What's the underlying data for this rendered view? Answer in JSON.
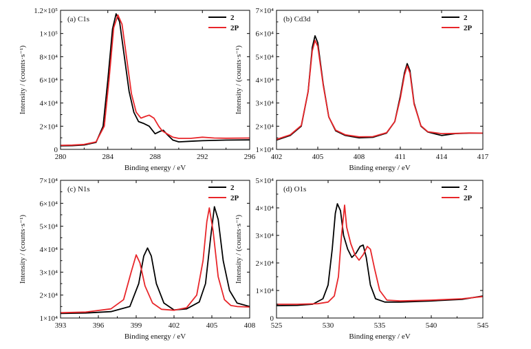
{
  "colors": {
    "series_2": "#000000",
    "series_2P": "#e8262a",
    "axis": "#000000"
  },
  "chart_data": [
    {
      "type": "line",
      "panel_label": "(a) C1s",
      "xlabel": "Binding energy / eV",
      "ylabel": "Intensity / (counts·s⁻¹)",
      "xlim": [
        280,
        296
      ],
      "ylim": [
        0,
        120000
      ],
      "x_ticks": [
        280,
        284,
        288,
        292,
        296
      ],
      "x_tick_labels": [
        "280",
        "284",
        "288",
        "292",
        "296"
      ],
      "y_ticks": [
        0,
        20000,
        40000,
        60000,
        80000,
        100000,
        120000
      ],
      "y_tick_labels": [
        "0",
        "2×10⁴",
        "4×10⁴",
        "6×10⁴",
        "8×10⁴",
        "1×10⁵",
        "1.2×10⁵"
      ],
      "legend": {
        "position": "top-right",
        "entries": [
          "2",
          "2P"
        ]
      },
      "series": [
        {
          "name": "2",
          "color": "#000000",
          "points": [
            [
              280,
              3000
            ],
            [
              281,
              3200
            ],
            [
              282,
              3800
            ],
            [
              283,
              6000
            ],
            [
              283.6,
              20000
            ],
            [
              284,
              60000
            ],
            [
              284.4,
              104000
            ],
            [
              284.7,
              117000
            ],
            [
              285,
              110000
            ],
            [
              285.4,
              80000
            ],
            [
              285.8,
              50000
            ],
            [
              286.2,
              32000
            ],
            [
              286.6,
              24000
            ],
            [
              287,
              22500
            ],
            [
              287.5,
              20000
            ],
            [
              288,
              13500
            ],
            [
              288.4,
              15500
            ],
            [
              288.7,
              16500
            ],
            [
              289,
              13000
            ],
            [
              289.5,
              8000
            ],
            [
              290,
              6500
            ],
            [
              291,
              7000
            ],
            [
              292,
              7500
            ],
            [
              294,
              8000
            ],
            [
              296,
              8200
            ]
          ]
        },
        {
          "name": "2P",
          "color": "#e8262a",
          "points": [
            [
              280,
              3500
            ],
            [
              281,
              3700
            ],
            [
              282,
              4300
            ],
            [
              283,
              6500
            ],
            [
              283.7,
              20000
            ],
            [
              284.1,
              60000
            ],
            [
              284.5,
              105000
            ],
            [
              284.85,
              116000
            ],
            [
              285.2,
              108000
            ],
            [
              285.6,
              78000
            ],
            [
              286,
              48000
            ],
            [
              286.4,
              32000
            ],
            [
              286.8,
              27000
            ],
            [
              287.2,
              28500
            ],
            [
              287.5,
              29500
            ],
            [
              287.9,
              27000
            ],
            [
              288.3,
              20000
            ],
            [
              288.6,
              16000
            ],
            [
              289,
              13500
            ],
            [
              289.5,
              10500
            ],
            [
              290,
              9500
            ],
            [
              291,
              9500
            ],
            [
              292,
              10500
            ],
            [
              293,
              9800
            ],
            [
              294,
              9600
            ],
            [
              296,
              9800
            ]
          ]
        }
      ]
    },
    {
      "type": "line",
      "panel_label": "(b) Cd3d",
      "xlabel": "Binding energy / eV",
      "ylabel": "Intensity / (counts·s⁻¹)",
      "xlim": [
        402,
        417
      ],
      "ylim": [
        10000,
        70000
      ],
      "x_ticks": [
        402,
        405,
        408,
        411,
        414,
        417
      ],
      "x_tick_labels": [
        "402",
        "405",
        "408",
        "411",
        "414",
        "417"
      ],
      "y_ticks": [
        10000,
        20000,
        30000,
        40000,
        50000,
        60000,
        70000
      ],
      "y_tick_labels": [
        "1×10⁴",
        "2×10⁴",
        "3×10⁴",
        "4×10⁴",
        "5×10⁴",
        "6×10⁴",
        "7×10⁴"
      ],
      "legend": {
        "position": "top-right",
        "entries": [
          "2",
          "2P"
        ]
      },
      "series": [
        {
          "name": "2",
          "color": "#000000",
          "points": [
            [
              402,
              14000
            ],
            [
              403,
              16000
            ],
            [
              403.8,
              20000
            ],
            [
              404.3,
              35000
            ],
            [
              404.6,
              54000
            ],
            [
              404.8,
              59000
            ],
            [
              405,
              56000
            ],
            [
              405.4,
              38000
            ],
            [
              405.8,
              24000
            ],
            [
              406.3,
              18000
            ],
            [
              407,
              16000
            ],
            [
              408,
              15000
            ],
            [
              409,
              15200
            ],
            [
              410,
              17000
            ],
            [
              410.6,
              22000
            ],
            [
              411,
              33000
            ],
            [
              411.3,
              43000
            ],
            [
              411.5,
              47000
            ],
            [
              411.7,
              44000
            ],
            [
              412,
              30000
            ],
            [
              412.5,
              20000
            ],
            [
              413,
              17500
            ],
            [
              414,
              16000
            ],
            [
              415,
              16800
            ],
            [
              416,
              17000
            ],
            [
              417,
              17000
            ]
          ]
        },
        {
          "name": "2P",
          "color": "#e8262a",
          "points": [
            [
              402,
              14300
            ],
            [
              403,
              16300
            ],
            [
              403.8,
              20300
            ],
            [
              404.3,
              35000
            ],
            [
              404.6,
              52500
            ],
            [
              404.8,
              57000
            ],
            [
              405,
              54500
            ],
            [
              405.4,
              37500
            ],
            [
              405.8,
              24000
            ],
            [
              406.3,
              18300
            ],
            [
              407,
              16300
            ],
            [
              408,
              15400
            ],
            [
              409,
              15500
            ],
            [
              410,
              17200
            ],
            [
              410.6,
              22000
            ],
            [
              411,
              32000
            ],
            [
              411.3,
              42000
            ],
            [
              411.5,
              46000
            ],
            [
              411.7,
              43000
            ],
            [
              412,
              29500
            ],
            [
              412.5,
              20200
            ],
            [
              413,
              17600
            ],
            [
              414,
              16800
            ],
            [
              415,
              16900
            ],
            [
              416,
              17100
            ],
            [
              417,
              17000
            ]
          ]
        }
      ]
    },
    {
      "type": "line",
      "panel_label": "(c) N1s",
      "xlabel": "Binding energy / eV",
      "ylabel": "Intensity / (counts·s⁻¹)",
      "xlim": [
        393,
        408
      ],
      "ylim": [
        10000,
        70000
      ],
      "x_ticks": [
        393,
        396,
        399,
        402,
        405,
        408
      ],
      "x_tick_labels": [
        "393",
        "396",
        "399",
        "402",
        "405",
        "408"
      ],
      "y_ticks": [
        10000,
        20000,
        30000,
        40000,
        50000,
        60000,
        70000
      ],
      "y_tick_labels": [
        "1×10⁴",
        "2×10⁴",
        "3×10⁴",
        "4×10⁴",
        "5×10⁴",
        "6×10⁴",
        "7×10⁴"
      ],
      "legend": {
        "position": "top-right",
        "entries": [
          "2",
          "2P"
        ]
      },
      "series": [
        {
          "name": "2",
          "color": "#000000",
          "points": [
            [
              393,
              12000
            ],
            [
              395,
              12200
            ],
            [
              397,
              12800
            ],
            [
              398.5,
              15000
            ],
            [
              399.2,
              25000
            ],
            [
              399.6,
              37000
            ],
            [
              399.9,
              40500
            ],
            [
              400.2,
              37000
            ],
            [
              400.6,
              25000
            ],
            [
              401.2,
              16500
            ],
            [
              402,
              13500
            ],
            [
              403,
              14000
            ],
            [
              404,
              17000
            ],
            [
              404.5,
              25000
            ],
            [
              404.9,
              45000
            ],
            [
              405.2,
              58500
            ],
            [
              405.5,
              53000
            ],
            [
              405.9,
              35000
            ],
            [
              406.4,
              22000
            ],
            [
              407,
              16500
            ],
            [
              408,
              15000
            ]
          ]
        },
        {
          "name": "2P",
          "color": "#e8262a",
          "points": [
            [
              393,
              12300
            ],
            [
              395,
              12600
            ],
            [
              397,
              14000
            ],
            [
              398,
              18000
            ],
            [
              398.6,
              30000
            ],
            [
              399,
              37500
            ],
            [
              399.3,
              34000
            ],
            [
              399.7,
              24000
            ],
            [
              400.3,
              16500
            ],
            [
              401,
              13800
            ],
            [
              402,
              13400
            ],
            [
              403,
              14500
            ],
            [
              403.8,
              20000
            ],
            [
              404.3,
              35000
            ],
            [
              404.6,
              52000
            ],
            [
              404.8,
              58000
            ],
            [
              405.1,
              48000
            ],
            [
              405.5,
              28000
            ],
            [
              406,
              18000
            ],
            [
              406.5,
              15500
            ],
            [
              407,
              15000
            ],
            [
              408,
              14800
            ]
          ]
        }
      ]
    },
    {
      "type": "line",
      "panel_label": "(d) O1s",
      "xlabel": "Binding energy / eV",
      "ylabel": "Intensity / (counts·s⁻¹)",
      "xlim": [
        525,
        545
      ],
      "ylim": [
        0,
        50000
      ],
      "x_ticks": [
        525,
        530,
        535,
        540,
        545
      ],
      "x_tick_labels": [
        "525",
        "530",
        "535",
        "540",
        "545"
      ],
      "y_ticks": [
        0,
        10000,
        20000,
        30000,
        40000,
        50000
      ],
      "y_tick_labels": [
        "0",
        "1×10⁴",
        "2×10⁴",
        "3×10⁴",
        "4×10⁴",
        "5×10⁴"
      ],
      "legend": {
        "position": "top-right",
        "entries": [
          "2",
          "2P"
        ]
      },
      "series": [
        {
          "name": "2",
          "color": "#000000",
          "points": [
            [
              525,
              4500
            ],
            [
              527,
              4600
            ],
            [
              528.5,
              5000
            ],
            [
              529.5,
              7000
            ],
            [
              530,
              12000
            ],
            [
              530.4,
              25000
            ],
            [
              530.7,
              38000
            ],
            [
              530.9,
              41500
            ],
            [
              531.2,
              39000
            ],
            [
              531.5,
              30000
            ],
            [
              531.9,
              25000
            ],
            [
              532.3,
              22000
            ],
            [
              532.7,
              23500
            ],
            [
              533.1,
              26000
            ],
            [
              533.4,
              26500
            ],
            [
              533.7,
              22000
            ],
            [
              534.1,
              12000
            ],
            [
              534.6,
              7000
            ],
            [
              535.5,
              5800
            ],
            [
              537,
              5800
            ],
            [
              540,
              6200
            ],
            [
              543,
              6800
            ],
            [
              545,
              8000
            ]
          ]
        },
        {
          "name": "2P",
          "color": "#e8262a",
          "points": [
            [
              525,
              5000
            ],
            [
              527,
              5000
            ],
            [
              529,
              5200
            ],
            [
              530,
              5800
            ],
            [
              530.6,
              8000
            ],
            [
              531,
              15000
            ],
            [
              531.3,
              30000
            ],
            [
              531.6,
              41000
            ],
            [
              531.8,
              33000
            ],
            [
              532.2,
              27000
            ],
            [
              532.6,
              23000
            ],
            [
              533,
              21000
            ],
            [
              533.4,
              23000
            ],
            [
              533.8,
              26000
            ],
            [
              534.1,
              25000
            ],
            [
              534.5,
              18000
            ],
            [
              535,
              10000
            ],
            [
              535.7,
              6500
            ],
            [
              537,
              6200
            ],
            [
              540,
              6500
            ],
            [
              543,
              7000
            ],
            [
              545,
              7800
            ]
          ]
        }
      ]
    }
  ]
}
